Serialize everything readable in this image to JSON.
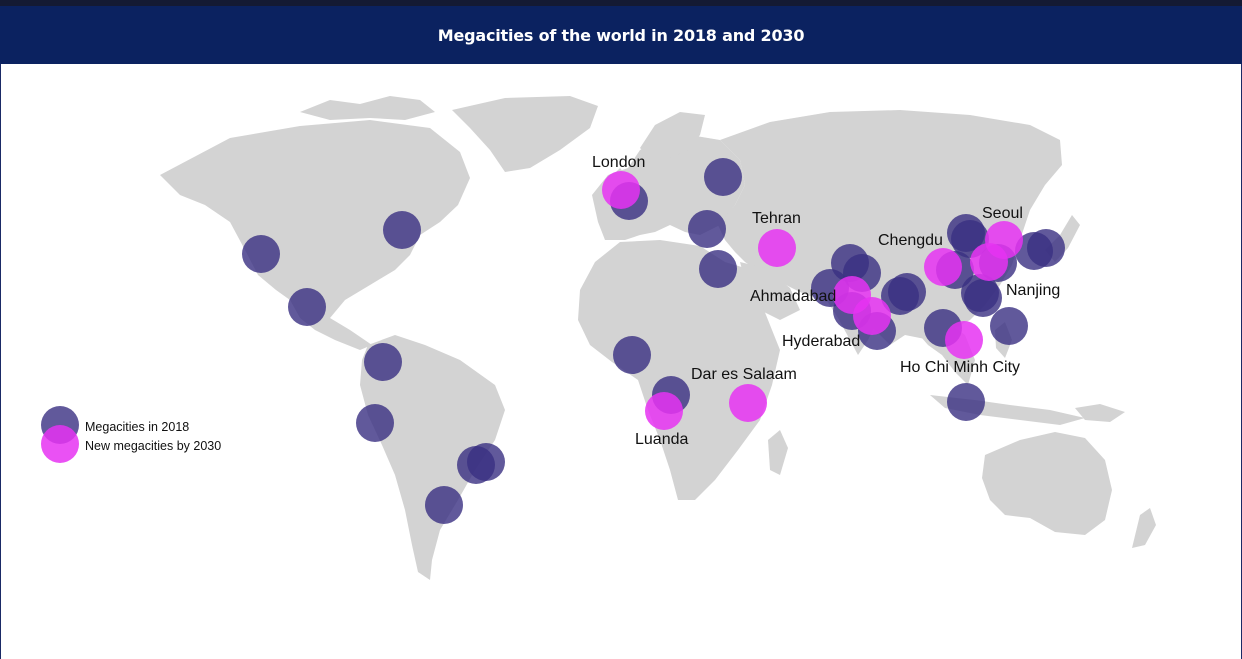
{
  "title": "Megacities of the world in 2018 and 2030",
  "colors": {
    "header_bg": "#0b2260",
    "land": "#d3d3d3",
    "megacity_2018": "#4b3f8f",
    "new_2030": "#e63cf0"
  },
  "legend": {
    "megacities_2018": "Megacities in 2018",
    "new_2030": "New megacities by 2030"
  },
  "labels": {
    "london": "London",
    "tehran": "Tehran",
    "seoul": "Seoul",
    "chengdu": "Chengdu",
    "ahmadabad": "Ahmadabad",
    "nanjing": "Nanjing",
    "hyderabad": "Hyderabad",
    "ho_chi_minh_city": "Ho Chi Minh City",
    "dar_es_salaam": "Dar es Salaam",
    "luanda": "Luanda"
  }
}
